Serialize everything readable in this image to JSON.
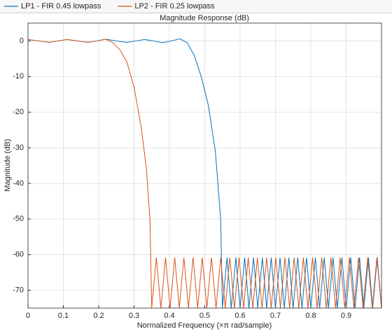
{
  "chart_data": {
    "type": "line",
    "title": "Magnitude Response (dB)",
    "x_label": "Normalized Frequency (×π rad/sample)",
    "y_label": "Magnitude (dB)",
    "xlim": [
      0,
      1
    ],
    "ylim": [
      -75,
      5
    ],
    "xticks": [
      0,
      0.1,
      0.2,
      0.3,
      0.4,
      0.5,
      0.6,
      0.7,
      0.8,
      0.9
    ],
    "yticks": [
      0,
      -10,
      -20,
      -30,
      -40,
      -50,
      -60,
      -70
    ],
    "grid": true,
    "series": [
      {
        "name": "LP1 - FIR 0.45 lowpass",
        "color": "#0072bd",
        "x": [
          0,
          0.03,
          0.06,
          0.085,
          0.11,
          0.14,
          0.17,
          0.195,
          0.22,
          0.25,
          0.28,
          0.305,
          0.33,
          0.355,
          0.38,
          0.405,
          0.43,
          0.45,
          0.47,
          0.49,
          0.51,
          0.53,
          0.545,
          0.55,
          0.563,
          0.575,
          0.588,
          0.6,
          0.613,
          0.625,
          0.638,
          0.65,
          0.663,
          0.675,
          0.688,
          0.7,
          0.713,
          0.725,
          0.738,
          0.75,
          0.763,
          0.775,
          0.788,
          0.8,
          0.813,
          0.825,
          0.838,
          0.85,
          0.863,
          0.875,
          0.888,
          0.9,
          0.913,
          0.925,
          0.938,
          0.95,
          0.963,
          0.975,
          0.988,
          1.0
        ],
        "values": [
          0.4,
          0,
          -0.4,
          0,
          0.4,
          0,
          -0.4,
          0,
          0.5,
          0,
          -0.4,
          0,
          0.4,
          0,
          -0.5,
          0,
          0.6,
          -0.5,
          -4,
          -10,
          -18,
          -31,
          -50,
          -75,
          -60.8,
          -75,
          -60.8,
          -75,
          -60.8,
          -75,
          -60.8,
          -75,
          -60.8,
          -75,
          -60.8,
          -75,
          -60.8,
          -75,
          -60.8,
          -75,
          -60.8,
          -75,
          -60.8,
          -75,
          -60.8,
          -75,
          -60.8,
          -75,
          -60.8,
          -75,
          -60.8,
          -75,
          -60.8,
          -75,
          -60.8,
          -75,
          -60.8,
          -75,
          -60.8,
          -75
        ]
      },
      {
        "name": "LP2 - FIR 0.25 lowpass",
        "color": "#d95319",
        "x": [
          0,
          0.03,
          0.06,
          0.085,
          0.11,
          0.14,
          0.17,
          0.195,
          0.22,
          0.24,
          0.26,
          0.28,
          0.3,
          0.32,
          0.335,
          0.345,
          0.35,
          0.363,
          0.376,
          0.389,
          0.402,
          0.415,
          0.428,
          0.441,
          0.454,
          0.467,
          0.48,
          0.493,
          0.506,
          0.519,
          0.532,
          0.545,
          0.558,
          0.571,
          0.584,
          0.597,
          0.61,
          0.623,
          0.636,
          0.649,
          0.662,
          0.675,
          0.688,
          0.701,
          0.714,
          0.727,
          0.74,
          0.753,
          0.766,
          0.779,
          0.792,
          0.805,
          0.818,
          0.831,
          0.844,
          0.857,
          0.87,
          0.883,
          0.896,
          0.909,
          0.922,
          0.935,
          0.948,
          0.961,
          0.974,
          0.987,
          1.0
        ],
        "values": [
          0.4,
          0,
          -0.4,
          0,
          0.4,
          0,
          -0.4,
          0,
          0.5,
          -0.5,
          -2.5,
          -6,
          -13,
          -24,
          -36,
          -50,
          -75,
          -60.8,
          -75,
          -60.8,
          -75,
          -60.8,
          -75,
          -60.8,
          -75,
          -60.8,
          -75,
          -60.8,
          -75,
          -60.8,
          -75,
          -60.8,
          -75,
          -60.8,
          -75,
          -60.8,
          -75,
          -60.8,
          -75,
          -60.8,
          -75,
          -60.8,
          -75,
          -60.8,
          -75,
          -60.8,
          -75,
          -60.8,
          -75,
          -60.8,
          -75,
          -60.8,
          -75,
          -60.8,
          -75,
          -60.8,
          -75,
          -60.8,
          -75,
          -60.8,
          -75,
          -60.8,
          -75,
          -60.8,
          -75,
          -60.8,
          -75
        ]
      }
    ]
  }
}
